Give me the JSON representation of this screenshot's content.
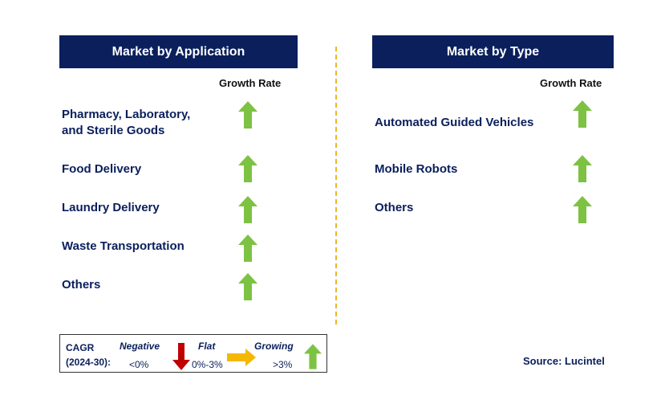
{
  "left_panel": {
    "title": "Market by Application",
    "column_header": "Growth Rate",
    "items": [
      {
        "label_line1": "Pharmacy, Laboratory,",
        "label_line2": "and Sterile Goods",
        "trend": "growing"
      },
      {
        "label": "Food Delivery",
        "trend": "growing"
      },
      {
        "label": "Laundry Delivery",
        "trend": "growing"
      },
      {
        "label": "Waste Transportation",
        "trend": "growing"
      },
      {
        "label": "Others",
        "trend": "growing"
      }
    ]
  },
  "right_panel": {
    "title": "Market by Type",
    "column_header": "Growth Rate",
    "items": [
      {
        "label": "Automated Guided Vehicles",
        "trend": "growing"
      },
      {
        "label": "Mobile Robots",
        "trend": "growing"
      },
      {
        "label": "Others",
        "trend": "growing"
      }
    ]
  },
  "legend": {
    "cagr_label": "CAGR",
    "period": "(2024-30):",
    "negative_label": "Negative",
    "negative_range": "<0%",
    "flat_label": "Flat",
    "flat_range": "0%-3%",
    "growing_label": "Growing",
    "growing_range": ">3%"
  },
  "source": "Source: Lucintel",
  "colors": {
    "header_bg": "#0a1f5c",
    "text_navy": "#0a1f5c",
    "arrow_green": "#7dc243",
    "arrow_red": "#c00000",
    "arrow_orange": "#f5b800",
    "divider": "#f0b429"
  },
  "icons": {
    "growing": "arrow-up-green-icon",
    "negative": "arrow-down-red-icon",
    "flat": "arrow-right-orange-icon"
  }
}
